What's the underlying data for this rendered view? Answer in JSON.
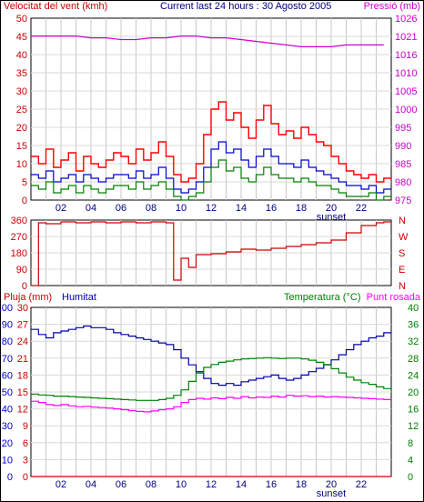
{
  "header": {
    "wind_title": "Velocitat del vent (kmh)",
    "current": "Current last 24 hours : 30 Agosto 2005",
    "pressure_title": "Pressió (mb)"
  },
  "bottom_header": {
    "rain_title": "Pluja (mm)",
    "humidity_title": "Humitat",
    "temp_title": "Temperatura (°C)",
    "dew_title": "Punt rosada"
  },
  "colors": {
    "wind_gust": "#ff0000",
    "wind_avg": "#0000cc",
    "wind_low": "#008000",
    "pressure": "#cc00cc",
    "direction": "#cc0000",
    "humidity": "#0000aa",
    "temperature": "#008000",
    "dew": "#ff00ff",
    "rain": "#cc0000"
  },
  "chart_data": [
    {
      "type": "line",
      "name": "wind-pressure",
      "xticks": [
        "02",
        "04",
        "06",
        "08",
        "10",
        "12",
        "14",
        "16",
        "18",
        "20",
        "22"
      ],
      "x_marker": "sunset",
      "x_range": [
        0,
        24
      ],
      "y_left_ticks": [
        "0",
        "5",
        "10",
        "15",
        "20",
        "25",
        "30",
        "35",
        "40",
        "45",
        "50"
      ],
      "y_left_range": [
        0,
        50
      ],
      "y_right_ticks": [
        "975",
        "980",
        "985",
        "990",
        "995",
        "1000",
        "1005",
        "1010",
        "1016",
        "1021",
        "1026"
      ],
      "y_right_range": [
        975,
        1026
      ],
      "series": [
        {
          "key": "gust",
          "axis": "left",
          "x": [
            0,
            0.5,
            1,
            1.5,
            2,
            2.5,
            3,
            3.5,
            4,
            4.5,
            5,
            5.5,
            6,
            6.5,
            7,
            7.5,
            8,
            8.5,
            9,
            9.5,
            10,
            10.5,
            11,
            11.5,
            12,
            12.5,
            13,
            13.5,
            14,
            14.5,
            15,
            15.5,
            16,
            16.5,
            17,
            17.5,
            18,
            18.5,
            19,
            19.5,
            20,
            20.5,
            21,
            21.5,
            22,
            22.5,
            23,
            23.5
          ],
          "y": [
            12,
            10,
            14,
            9,
            11,
            13,
            8,
            12,
            10,
            9,
            11,
            13,
            12,
            10,
            14,
            11,
            13,
            16,
            12,
            7,
            5,
            6,
            10,
            18,
            25,
            27,
            22,
            24,
            20,
            17,
            22,
            26,
            21,
            18,
            19,
            17,
            20,
            18,
            16,
            15,
            12,
            10,
            8,
            7,
            6,
            7,
            5,
            6
          ]
        },
        {
          "key": "avg",
          "axis": "left",
          "x": [
            0,
            0.5,
            1,
            1.5,
            2,
            2.5,
            3,
            3.5,
            4,
            4.5,
            5,
            5.5,
            6,
            6.5,
            7,
            7.5,
            8,
            8.5,
            9,
            9.5,
            10,
            10.5,
            11,
            11.5,
            12,
            12.5,
            13,
            13.5,
            14,
            14.5,
            15,
            15.5,
            16,
            16.5,
            17,
            17.5,
            18,
            18.5,
            19,
            19.5,
            20,
            20.5,
            21,
            21.5,
            22,
            22.5,
            23,
            23.5
          ],
          "y": [
            7,
            6,
            8,
            5,
            6,
            7,
            5,
            7,
            6,
            5,
            6,
            7,
            7,
            6,
            8,
            6,
            7,
            9,
            6,
            3,
            2,
            3,
            5,
            9,
            14,
            16,
            13,
            14,
            11,
            9,
            12,
            14,
            12,
            10,
            10,
            9,
            11,
            9,
            8,
            7,
            6,
            5,
            4,
            4,
            3,
            4,
            2,
            3
          ]
        },
        {
          "key": "low",
          "axis": "left",
          "x": [
            0,
            0.5,
            1,
            1.5,
            2,
            2.5,
            3,
            3.5,
            4,
            4.5,
            5,
            5.5,
            6,
            6.5,
            7,
            7.5,
            8,
            8.5,
            9,
            9.5,
            10,
            10.5,
            11,
            11.5,
            12,
            12.5,
            13,
            13.5,
            14,
            14.5,
            15,
            15.5,
            16,
            16.5,
            17,
            17.5,
            18,
            18.5,
            19,
            19.5,
            20,
            20.5,
            21,
            21.5,
            22,
            22.5,
            23,
            23.5
          ],
          "y": [
            4,
            3,
            5,
            2,
            3,
            4,
            2,
            4,
            3,
            2,
            3,
            4,
            4,
            3,
            5,
            3,
            4,
            5,
            3,
            1,
            0,
            1,
            2,
            5,
            9,
            11,
            8,
            9,
            6,
            5,
            7,
            9,
            7,
            6,
            6,
            5,
            6,
            5,
            4,
            4,
            3,
            2,
            1,
            1,
            1,
            2,
            0,
            1
          ]
        },
        {
          "key": "pressure",
          "axis": "right",
          "x": [
            0,
            1,
            2,
            3,
            4,
            5,
            6,
            7,
            8,
            9,
            10,
            11,
            12,
            13,
            14,
            15,
            16,
            17,
            18,
            19,
            20,
            21,
            22,
            23.5
          ],
          "y": [
            1021,
            1021,
            1021,
            1021,
            1020.5,
            1020.5,
            1020,
            1020,
            1020.5,
            1020.5,
            1021,
            1021,
            1020.5,
            1020.5,
            1020,
            1019.5,
            1019,
            1018.5,
            1018,
            1018,
            1018,
            1018.5,
            1018.5,
            1018.5
          ]
        }
      ]
    },
    {
      "type": "line",
      "name": "wind-direction",
      "y_left_ticks": [
        "0",
        "90",
        "180",
        "270",
        "360"
      ],
      "y_left_range": [
        0,
        360
      ],
      "y_right_ticks": [
        "N",
        "E",
        "S",
        "W",
        "N"
      ],
      "series": [
        {
          "key": "direction",
          "x": [
            0,
            0.5,
            1,
            2,
            3,
            4,
            5,
            6,
            7,
            8,
            9,
            9.5,
            10,
            10.5,
            11,
            12,
            13,
            14,
            15,
            16,
            17,
            18,
            19,
            20,
            21,
            22,
            23,
            23.5
          ],
          "y": [
            0,
            345,
            340,
            350,
            345,
            350,
            345,
            350,
            345,
            350,
            345,
            30,
            150,
            100,
            170,
            175,
            185,
            200,
            195,
            205,
            215,
            225,
            235,
            250,
            290,
            330,
            345,
            350
          ]
        }
      ]
    },
    {
      "type": "line",
      "name": "rain-humidity-temp",
      "xticks": [
        "02",
        "04",
        "06",
        "08",
        "10",
        "12",
        "14",
        "16",
        "18",
        "20",
        "22"
      ],
      "x_marker": "sunset",
      "y_left_outer_ticks": [
        "0",
        "10",
        "20",
        "30",
        "40",
        "50",
        "60",
        "70",
        "80",
        "90",
        "100"
      ],
      "y_left_outer_range": [
        0,
        100
      ],
      "y_left_inner_ticks": [
        "0",
        "3",
        "6",
        "9",
        "12",
        "15",
        "18",
        "21",
        "24",
        "27",
        "30"
      ],
      "y_left_inner_range": [
        0,
        30
      ],
      "y_right_ticks": [
        "0",
        "4",
        "8",
        "12",
        "16",
        "20",
        "24",
        "28",
        "32",
        "36",
        "40"
      ],
      "y_right_range": [
        0,
        40
      ],
      "series": [
        {
          "key": "humidity",
          "axis": "humidity",
          "x": [
            0,
            0.5,
            1,
            1.5,
            2,
            2.5,
            3,
            3.5,
            4,
            4.5,
            5,
            5.5,
            6,
            6.5,
            7,
            7.5,
            8,
            8.5,
            9,
            9.5,
            10,
            10.5,
            11,
            11.5,
            12,
            12.5,
            13,
            13.5,
            14,
            14.5,
            15,
            15.5,
            16,
            16.5,
            17,
            17.5,
            18,
            18.5,
            19,
            19.5,
            20,
            20.5,
            21,
            21.5,
            22,
            22.5,
            23,
            23.5
          ],
          "y": [
            87,
            84,
            82,
            85,
            86,
            87,
            88,
            89,
            88,
            88,
            87,
            85,
            84,
            83,
            82,
            81,
            80,
            79,
            78,
            75,
            70,
            66,
            62,
            58,
            55,
            54,
            55,
            54,
            56,
            57,
            58,
            59,
            60,
            58,
            57,
            58,
            60,
            62,
            64,
            66,
            69,
            72,
            75,
            78,
            80,
            82,
            83,
            85
          ]
        },
        {
          "key": "temperature",
          "axis": "temp",
          "x": [
            0,
            0.5,
            1,
            1.5,
            2,
            2.5,
            3,
            3.5,
            4,
            4.5,
            5,
            5.5,
            6,
            6.5,
            7,
            7.5,
            8,
            8.5,
            9,
            9.5,
            10,
            10.5,
            11,
            11.5,
            12,
            12.5,
            13,
            13.5,
            14,
            14.5,
            15,
            15.5,
            16,
            16.5,
            17,
            17.5,
            18,
            18.5,
            19,
            19.5,
            20,
            20.5,
            21,
            21.5,
            22,
            22.5,
            23,
            23.5
          ],
          "y": [
            19.5,
            19.3,
            19.2,
            19.0,
            19.0,
            18.9,
            18.8,
            18.7,
            18.6,
            18.5,
            18.4,
            18.3,
            18.2,
            18.1,
            18.0,
            18.0,
            18.0,
            18.2,
            18.5,
            19.2,
            20.5,
            22.5,
            24.5,
            25.8,
            26.5,
            27.0,
            27.3,
            27.6,
            27.8,
            27.9,
            28.0,
            28.1,
            28.0,
            27.9,
            28.0,
            28.0,
            27.8,
            27.5,
            27.0,
            26.5,
            25.5,
            24.5,
            23.5,
            22.8,
            22.2,
            21.8,
            21.2,
            20.8
          ]
        },
        {
          "key": "dew",
          "axis": "temp",
          "x": [
            0,
            0.5,
            1,
            1.5,
            2,
            2.5,
            3,
            3.5,
            4,
            4.5,
            5,
            5.5,
            6,
            6.5,
            7,
            7.5,
            8,
            8.5,
            9,
            9.5,
            10,
            10.5,
            11,
            11.5,
            12,
            12.5,
            13,
            13.5,
            14,
            14.5,
            15,
            15.5,
            16,
            16.5,
            17,
            17.5,
            18,
            18.5,
            19,
            19.5,
            20,
            20.5,
            21,
            21.5,
            22,
            22.5,
            23,
            23.5
          ],
          "y": [
            17.8,
            17.5,
            17.0,
            16.8,
            17.0,
            16.7,
            16.5,
            16.6,
            16.4,
            16.3,
            16.2,
            16.0,
            15.8,
            15.6,
            15.4,
            15.3,
            15.5,
            15.8,
            16.0,
            16.5,
            17.5,
            18.2,
            18.5,
            18.3,
            18.6,
            18.4,
            18.7,
            18.5,
            18.9,
            18.6,
            18.8,
            18.7,
            19.0,
            18.8,
            19.2,
            19.0,
            19.1,
            18.9,
            19.0,
            18.8,
            18.9,
            18.8,
            18.7,
            18.6,
            18.5,
            18.4,
            18.3,
            18.2
          ]
        },
        {
          "key": "rain",
          "axis": "rain",
          "x": [
            0,
            23.5
          ],
          "y": [
            0,
            0
          ]
        }
      ]
    }
  ]
}
